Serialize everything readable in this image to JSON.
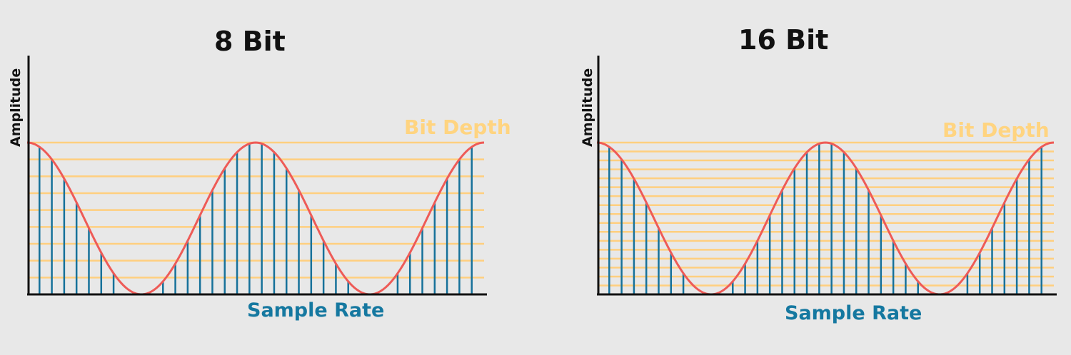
{
  "colors": {
    "background": "#e8e8e8",
    "axis": "#111111",
    "wave": "#ee5b57",
    "samples": "#16719a",
    "levels": "#ffcf7f",
    "sample_rate_label": "#1578a0",
    "bit_depth_label": "#ffd480"
  },
  "panels": [
    {
      "title": "8 Bit",
      "y_label": "Amplitude",
      "x_label": "Sample Rate",
      "depth_label": "Bit Depth",
      "level_count": 9,
      "sample_count": 37,
      "wave_cycles": 2
    },
    {
      "title": "16 Bit",
      "y_label": "Amplitude",
      "x_label": "Sample Rate",
      "depth_label": "Bit Depth",
      "level_count": 17,
      "sample_count": 37,
      "wave_cycles": 2
    }
  ]
}
